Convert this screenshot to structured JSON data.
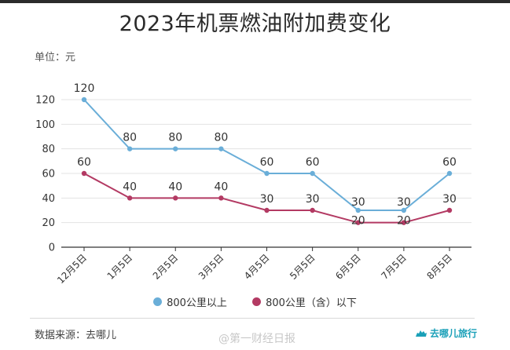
{
  "title": "2023年机票燃油附加费变化",
  "unit_label": "单位：元",
  "source_text": "数据来源：去哪儿",
  "watermark_text": "@第一财经日报",
  "brand_text": "去哪儿旅行",
  "colors": {
    "series_above": "#6aaed8",
    "series_below": "#b33a63",
    "grid": "#e3e3e3",
    "axis": "#333333"
  },
  "chart_data": {
    "type": "line",
    "title": "2023年机票燃油附加费变化",
    "ylabel": "单位：元",
    "ylim": [
      0,
      120
    ],
    "yticks": [
      0,
      20,
      40,
      60,
      80,
      100,
      120
    ],
    "categories": [
      "12月5日",
      "1月5日",
      "2月5日",
      "3月5日",
      "4月5日",
      "5月5日",
      "6月5日",
      "7月5日",
      "8月5日"
    ],
    "series": [
      {
        "name": "800公里以上",
        "values": [
          120,
          80,
          80,
          80,
          60,
          60,
          30,
          30,
          60
        ]
      },
      {
        "name": "800公里（含）以下",
        "values": [
          60,
          40,
          40,
          40,
          30,
          30,
          20,
          20,
          30
        ]
      }
    ],
    "legend_position": "bottom-center"
  }
}
